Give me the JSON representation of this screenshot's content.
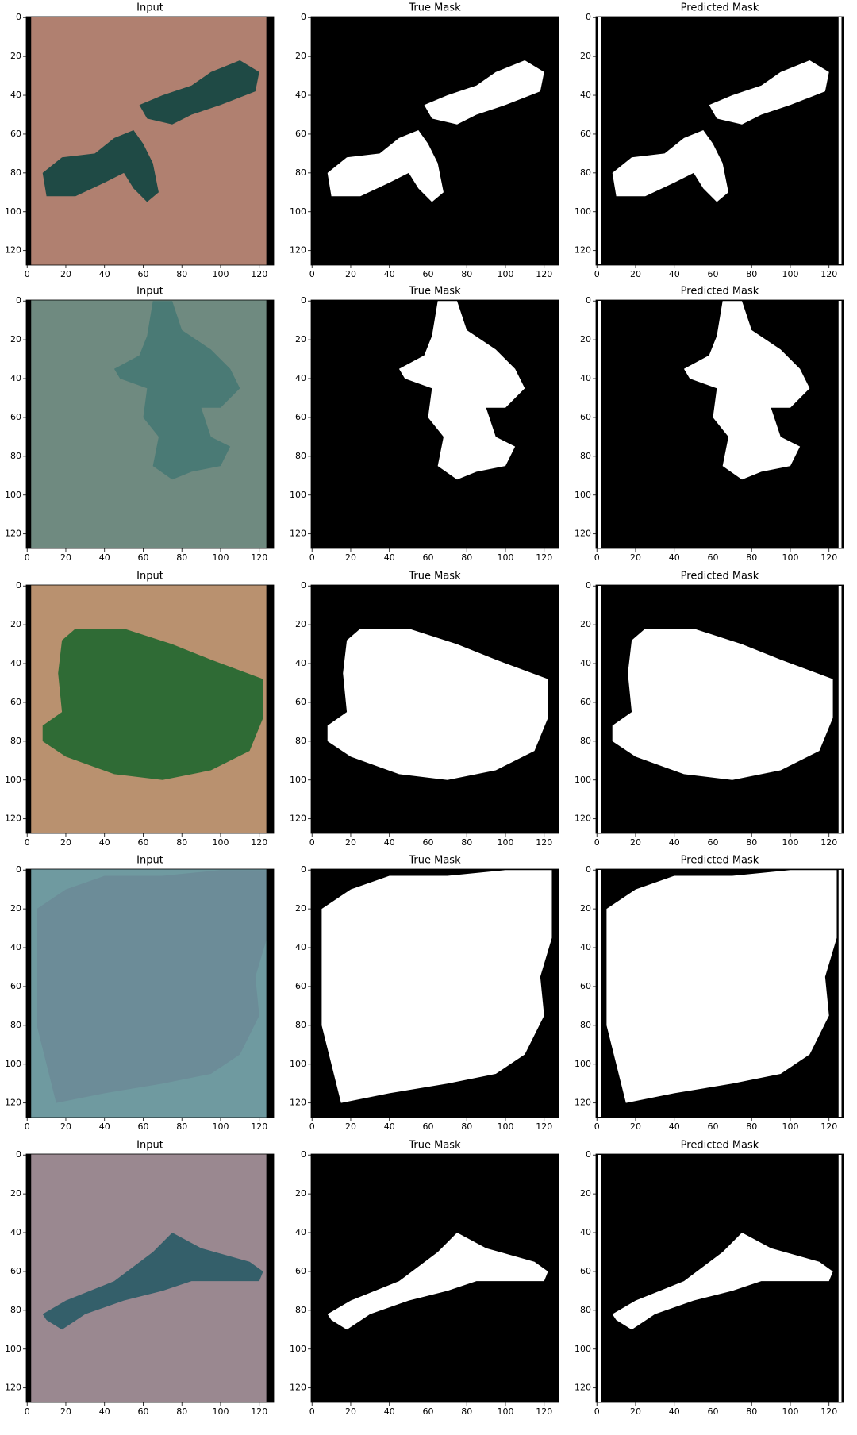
{
  "chart_data": [
    {
      "type": "image",
      "title": "Input",
      "xlim": [
        -0.5,
        127.5
      ],
      "ylim": [
        127.5,
        -0.5
      ],
      "xticks": [
        0,
        20,
        40,
        60,
        80,
        100,
        120
      ],
      "yticks": [
        0,
        20,
        40,
        60,
        80,
        100,
        120
      ]
    },
    {
      "type": "image",
      "title": "True Mask",
      "xlim": [
        -0.5,
        127.5
      ],
      "ylim": [
        127.5,
        -0.5
      ],
      "xticks": [
        0,
        20,
        40,
        60,
        80,
        100,
        120
      ],
      "yticks": [
        0,
        20,
        40,
        60,
        80,
        100,
        120
      ]
    },
    {
      "type": "image",
      "title": "Predicted Mask",
      "xlim": [
        -0.5,
        127.5
      ],
      "ylim": [
        127.5,
        -0.5
      ],
      "xticks": [
        0,
        20,
        40,
        60,
        80,
        100,
        120
      ],
      "yticks": [
        0,
        20,
        40,
        60,
        80,
        100,
        120
      ]
    },
    {
      "type": "image",
      "title": "Input",
      "xlim": [
        -0.5,
        127.5
      ],
      "ylim": [
        127.5,
        -0.5
      ],
      "xticks": [
        0,
        20,
        40,
        60,
        80,
        100,
        120
      ],
      "yticks": [
        0,
        20,
        40,
        60,
        80,
        100,
        120
      ]
    },
    {
      "type": "image",
      "title": "True Mask",
      "xlim": [
        -0.5,
        127.5
      ],
      "ylim": [
        127.5,
        -0.5
      ],
      "xticks": [
        0,
        20,
        40,
        60,
        80,
        100,
        120
      ],
      "yticks": [
        0,
        20,
        40,
        60,
        80,
        100,
        120
      ]
    },
    {
      "type": "image",
      "title": "Predicted Mask",
      "xlim": [
        -0.5,
        127.5
      ],
      "ylim": [
        127.5,
        -0.5
      ],
      "xticks": [
        0,
        20,
        40,
        60,
        80,
        100,
        120
      ],
      "yticks": [
        0,
        20,
        40,
        60,
        80,
        100,
        120
      ]
    },
    {
      "type": "image",
      "title": "Input",
      "xlim": [
        -0.5,
        127.5
      ],
      "ylim": [
        127.5,
        -0.5
      ],
      "xticks": [
        0,
        20,
        40,
        60,
        80,
        100,
        120
      ],
      "yticks": [
        0,
        20,
        40,
        60,
        80,
        100,
        120
      ]
    },
    {
      "type": "image",
      "title": "True Mask",
      "xlim": [
        -0.5,
        127.5
      ],
      "ylim": [
        127.5,
        -0.5
      ],
      "xticks": [
        0,
        20,
        40,
        60,
        80,
        100,
        120
      ],
      "yticks": [
        0,
        20,
        40,
        60,
        80,
        100,
        120
      ]
    },
    {
      "type": "image",
      "title": "Predicted Mask",
      "xlim": [
        -0.5,
        127.5
      ],
      "ylim": [
        127.5,
        -0.5
      ],
      "xticks": [
        0,
        20,
        40,
        60,
        80,
        100,
        120
      ],
      "yticks": [
        0,
        20,
        40,
        60,
        80,
        100,
        120
      ]
    },
    {
      "type": "image",
      "title": "Input",
      "xlim": [
        -0.5,
        127.5
      ],
      "ylim": [
        127.5,
        -0.5
      ],
      "xticks": [
        0,
        20,
        40,
        60,
        80,
        100,
        120
      ],
      "yticks": [
        0,
        20,
        40,
        60,
        80,
        100,
        120
      ]
    },
    {
      "type": "image",
      "title": "True Mask",
      "xlim": [
        -0.5,
        127.5
      ],
      "ylim": [
        127.5,
        -0.5
      ],
      "xticks": [
        0,
        20,
        40,
        60,
        80,
        100,
        120
      ],
      "yticks": [
        0,
        20,
        40,
        60,
        80,
        100,
        120
      ]
    },
    {
      "type": "image",
      "title": "Predicted Mask",
      "xlim": [
        -0.5,
        127.5
      ],
      "ylim": [
        127.5,
        -0.5
      ],
      "xticks": [
        0,
        20,
        40,
        60,
        80,
        100,
        120
      ],
      "yticks": [
        0,
        20,
        40,
        60,
        80,
        100,
        120
      ]
    },
    {
      "type": "image",
      "title": "Input",
      "xlim": [
        -0.5,
        127.5
      ],
      "ylim": [
        127.5,
        -0.5
      ],
      "xticks": [
        0,
        20,
        40,
        60,
        80,
        100,
        120
      ],
      "yticks": [
        0,
        20,
        40,
        60,
        80,
        100,
        120
      ]
    },
    {
      "type": "image",
      "title": "True Mask",
      "xlim": [
        -0.5,
        127.5
      ],
      "ylim": [
        127.5,
        -0.5
      ],
      "xticks": [
        0,
        20,
        40,
        60,
        80,
        100,
        120
      ],
      "yticks": [
        0,
        20,
        40,
        60,
        80,
        100,
        120
      ]
    },
    {
      "type": "image",
      "title": "Predicted Mask",
      "xlim": [
        -0.5,
        127.5
      ],
      "ylim": [
        127.5,
        -0.5
      ],
      "xticks": [
        0,
        20,
        40,
        60,
        80,
        100,
        120
      ],
      "yticks": [
        0,
        20,
        40,
        60,
        80,
        100,
        120
      ]
    }
  ]
}
